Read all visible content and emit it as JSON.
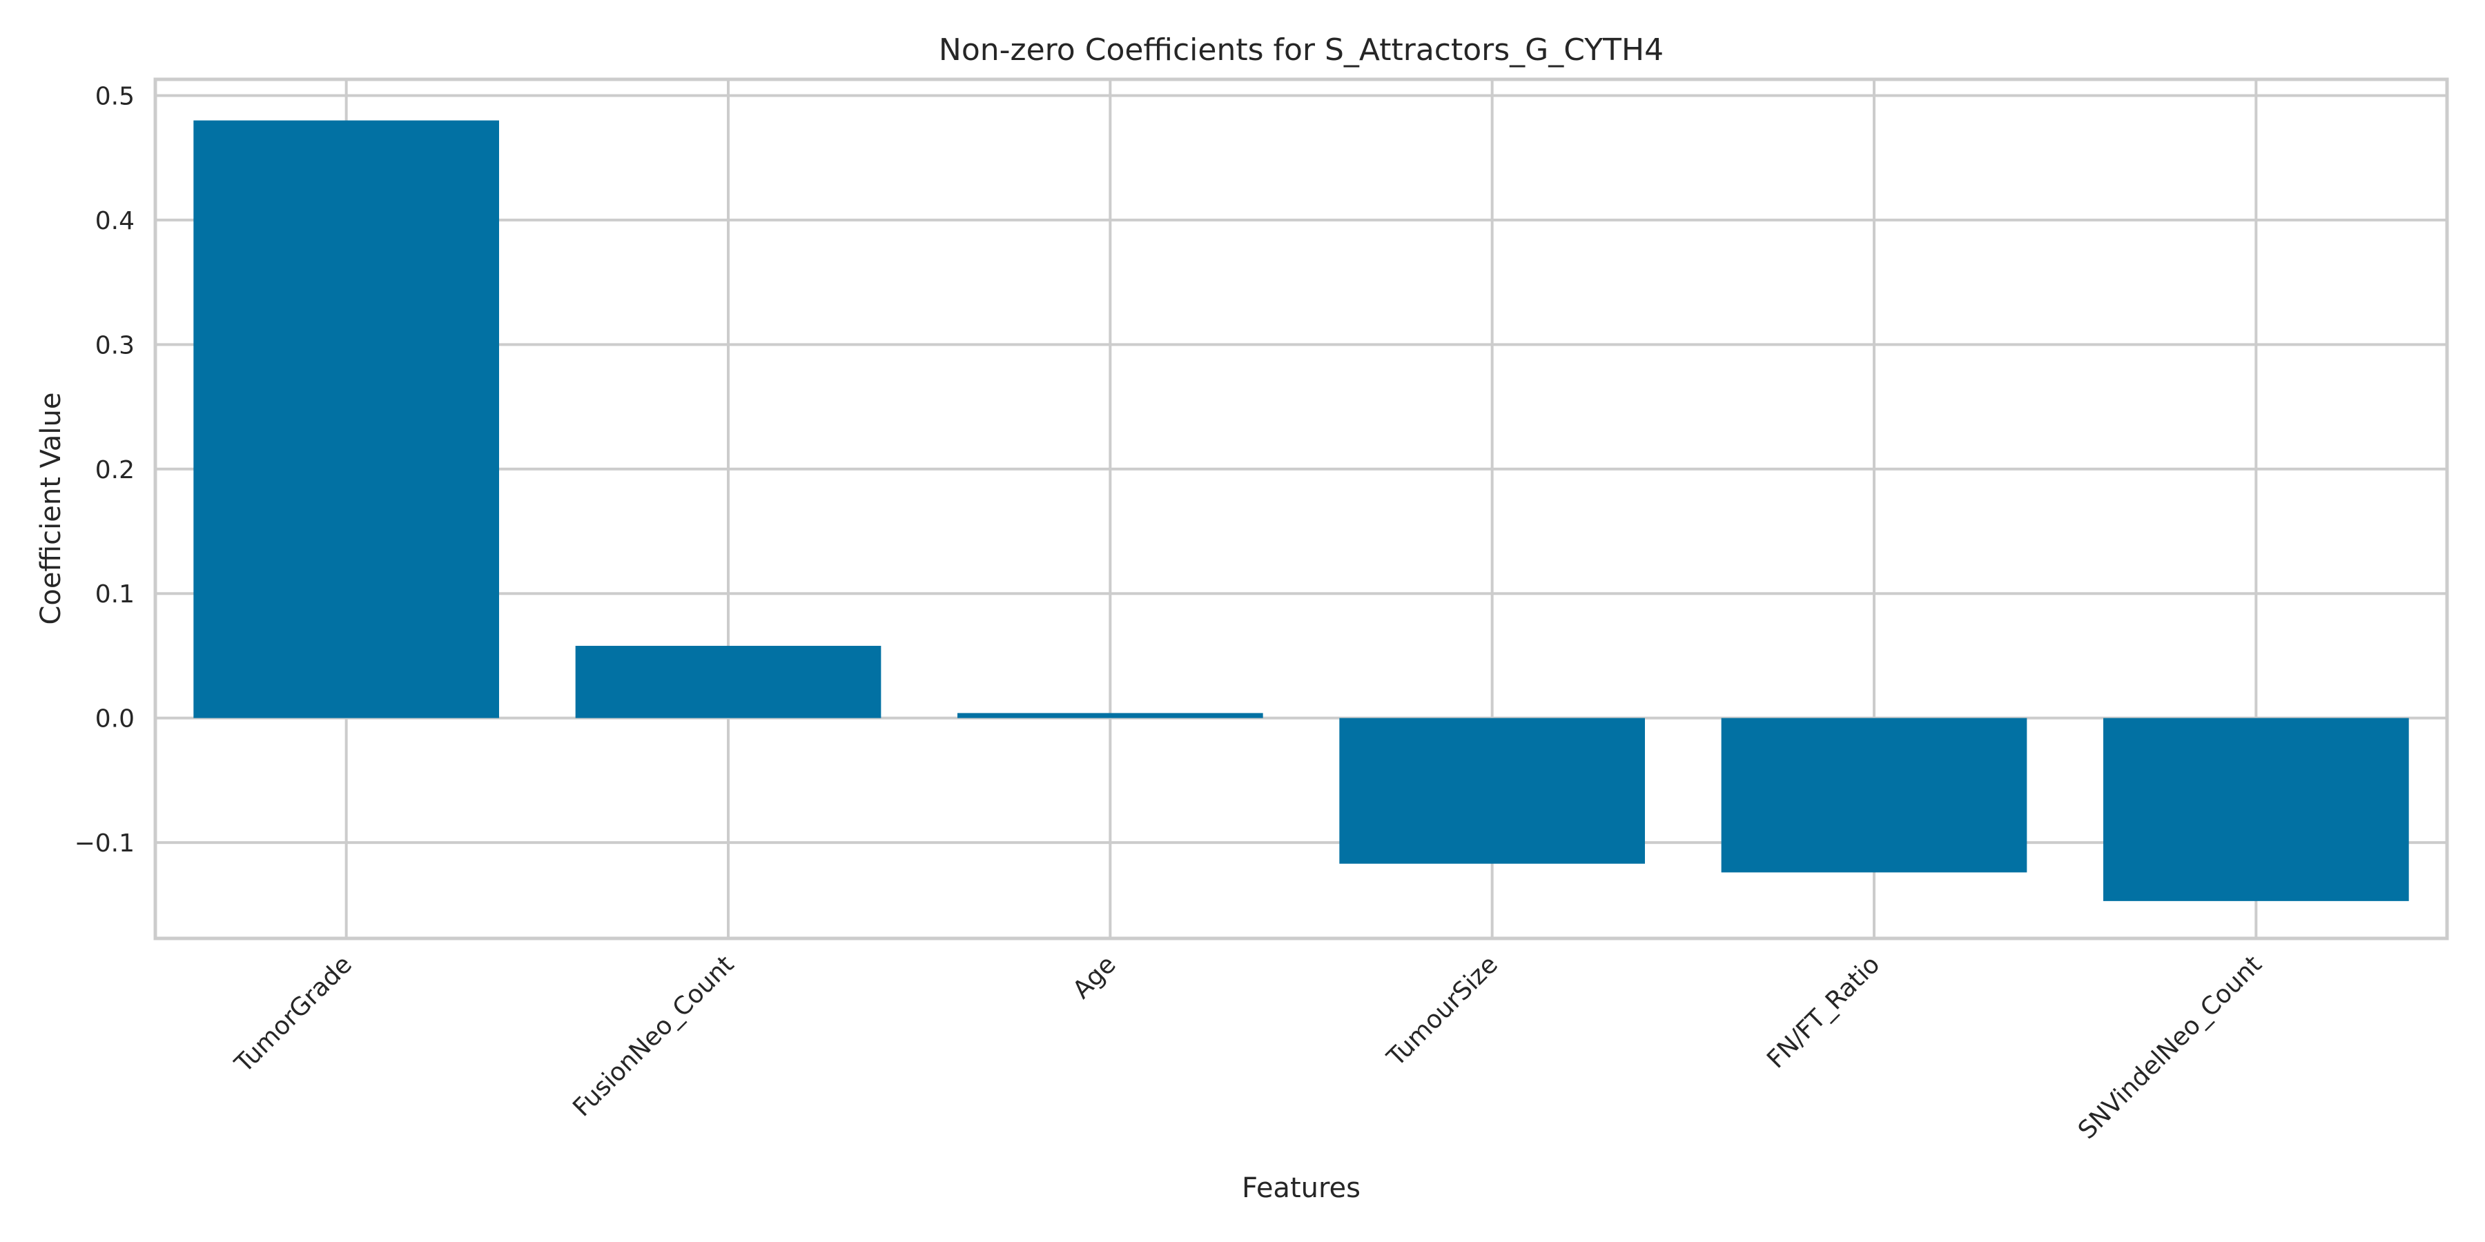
{
  "chart_data": {
    "type": "bar",
    "title": "Non-zero Coefficients for S_Attractors_G_CYTH4",
    "xlabel": "Features",
    "ylabel": "Coefficient Value",
    "categories": [
      "TumorGrade",
      "FusionNeo_Count",
      "Age",
      "TumourSize",
      "FN/FT_Ratio",
      "SNVindelNeo_Count"
    ],
    "values": [
      0.48,
      0.058,
      0.004,
      -0.117,
      -0.124,
      -0.147
    ],
    "ylim": [
      -0.177,
      0.513
    ],
    "yticks": [
      -0.1,
      0.0,
      0.1,
      0.2,
      0.3,
      0.4,
      0.5
    ],
    "ytick_labels": [
      "−0.1",
      "0.0",
      "0.1",
      "0.2",
      "0.3",
      "0.4",
      "0.5"
    ],
    "bar_color": "#0271a3",
    "grid": true,
    "legend": "none"
  }
}
